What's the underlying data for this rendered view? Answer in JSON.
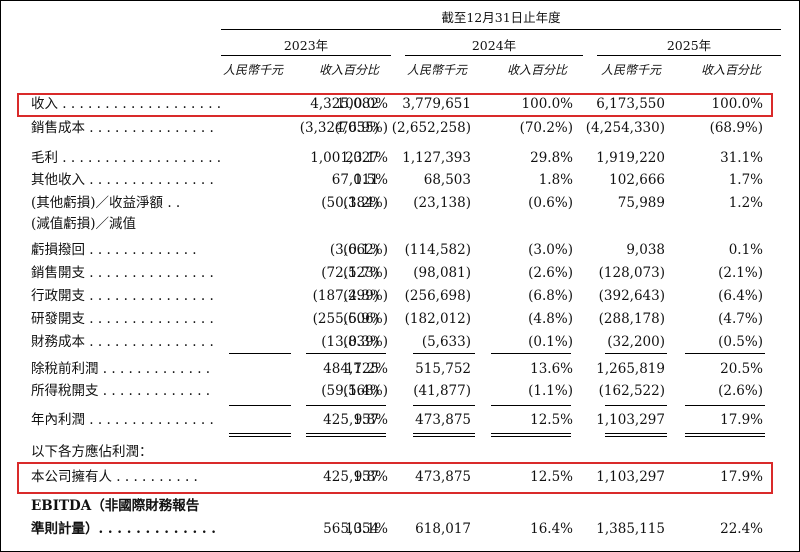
{
  "header": {
    "period": "截至12月31日止年度",
    "years": [
      "2023年",
      "2024年",
      "2025年"
    ],
    "sub_rmb": "人民幣千元",
    "sub_pct": "收入百分比"
  },
  "rows": [
    {
      "label": "收入 . . . . . . . . . . . . . . . . . . .",
      "v": [
        "4,325,082",
        "100.0%",
        "3,779,651",
        "100.0%",
        "6,173,550",
        "100.0%"
      ]
    },
    {
      "label": "銷售成本 . . . . . . . . . . . . . . .",
      "v": [
        "(3,324,055)",
        "(76.9%)",
        "(2,652,258)",
        "(70.2%)",
        "(4,254,330)",
        "(68.9%)"
      ]
    },
    {
      "label": "毛利 . . . . . . . . . . . . . . . . . . .",
      "v": [
        "1,001,027",
        "23.1%",
        "1,127,393",
        "29.8%",
        "1,919,220",
        "31.1%"
      ]
    },
    {
      "label": "其他收入 . . . . . . . . . . . . . . .",
      "v": [
        "67,011",
        "1.5%",
        "68,503",
        "1.8%",
        "102,666",
        "1.7%"
      ]
    },
    {
      "label": "(其他虧損)／收益淨額 . .",
      "v": [
        "(50,384)",
        "(1.2%)",
        "(23,138)",
        "(0.6%)",
        "75,989",
        "1.2%"
      ]
    },
    {
      "label": "(減值虧損)／減值",
      "v": [
        "",
        "",
        "",
        "",
        "",
        ""
      ]
    },
    {
      "label": "虧損撥回 . . . . . . . . . . . . .",
      "v": [
        "(3,662)",
        "(0.1%)",
        "(114,582)",
        "(3.0%)",
        "9,038",
        "0.1%"
      ]
    },
    {
      "label": "銷售開支 . . . . . . . . . . . . . . .",
      "v": [
        "(72,523)",
        "(1.7%)",
        "(98,081)",
        "(2.6%)",
        "(128,073)",
        "(2.1%)"
      ]
    },
    {
      "label": "行政開支 . . . . . . . . . . . . . . .",
      "v": [
        "(187,299)",
        "(4.3%)",
        "(256,698)",
        "(6.8%)",
        "(392,643)",
        "(6.4%)"
      ]
    },
    {
      "label": "研發開支 . . . . . . . . . . . . . . .",
      "v": [
        "(255,606)",
        "(5.9%)",
        "(182,012)",
        "(4.8%)",
        "(288,178)",
        "(4.7%)"
      ]
    },
    {
      "label": "財務成本 . . . . . . . . . . . . . . .",
      "v": [
        "(13,839)",
        "(0.3%)",
        "(5,633)",
        "(0.1%)",
        "(32,200)",
        "(0.5%)"
      ]
    },
    {
      "label": "除稅前利潤 . . . . . . . . . . . . .",
      "v": [
        "484,725",
        "11.2%",
        "515,752",
        "13.6%",
        "1,265,819",
        "20.5%"
      ]
    },
    {
      "label": "所得稅開支 . . . . . . . . . . . . .",
      "v": [
        "(59,568)",
        "(1.4%)",
        "(41,877)",
        "(1.1%)",
        "(162,522)",
        "(2.6%)"
      ]
    },
    {
      "label": "年內利潤 . . . . . . . . . . . . . . .",
      "v": [
        "425,157",
        "9.8%",
        "473,875",
        "12.5%",
        "1,103,297",
        "17.9%"
      ]
    },
    {
      "label": "以下各方應佔利潤：",
      "v": [
        "",
        "",
        "",
        "",
        "",
        ""
      ]
    },
    {
      "label": "本公司擁有人 . . . . . . . . . .",
      "v": [
        "425,157",
        "9.8%",
        "473,875",
        "12.5%",
        "1,103,297",
        "17.9%"
      ]
    },
    {
      "label": "EBITDA（非國際財務報告",
      "v": [
        "",
        "",
        "",
        "",
        "",
        ""
      ]
    },
    {
      "label": "準則計量）. . . . . . . . . . . . .",
      "v": [
        "565,054",
        "13.1%",
        "618,017",
        "16.4%",
        "1,385,115",
        "22.4%"
      ]
    }
  ]
}
